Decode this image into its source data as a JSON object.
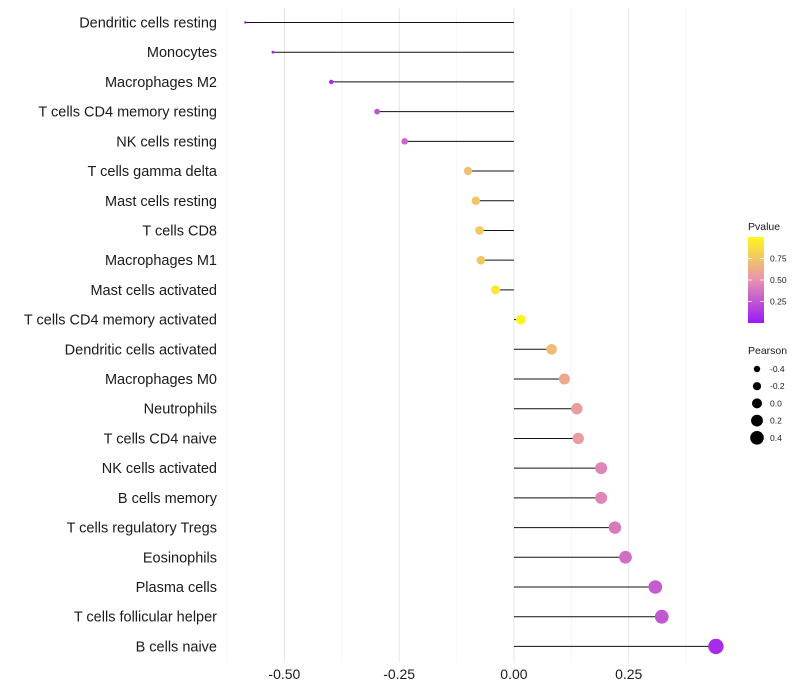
{
  "chart_data": {
    "type": "lollipop",
    "title": "",
    "xlabel": "",
    "ylabel": "",
    "xlim": [
      -0.625,
      0.475
    ],
    "x_ticks": [
      -0.5,
      -0.25,
      0.0,
      0.25
    ],
    "x_tick_labels": [
      "-0.50",
      "-0.25",
      "0.00",
      "0.25"
    ],
    "grid": true,
    "points": [
      {
        "label": "Dendritic cells resting",
        "x": -0.585,
        "pvalue": 0.0
      },
      {
        "label": "Monocytes",
        "x": -0.525,
        "pvalue": 0.03
      },
      {
        "label": "Macrophages M2",
        "x": -0.398,
        "pvalue": 0.07
      },
      {
        "label": "T cells CD4 memory resting",
        "x": -0.298,
        "pvalue": 0.24
      },
      {
        "label": "NK cells resting",
        "x": -0.238,
        "pvalue": 0.31
      },
      {
        "label": "T cells gamma delta",
        "x": -0.1,
        "pvalue": 0.72
      },
      {
        "label": "Mast cells resting",
        "x": -0.083,
        "pvalue": 0.75
      },
      {
        "label": "T cells CD8",
        "x": -0.075,
        "pvalue": 0.77
      },
      {
        "label": "Macrophages M1",
        "x": -0.072,
        "pvalue": 0.76
      },
      {
        "label": "Mast cells activated",
        "x": -0.04,
        "pvalue": 0.92
      },
      {
        "label": "T cells CD4 memory activated",
        "x": 0.015,
        "pvalue": 0.98
      },
      {
        "label": "Dendritic cells activated",
        "x": 0.082,
        "pvalue": 0.7
      },
      {
        "label": "Macrophages M0",
        "x": 0.11,
        "pvalue": 0.62
      },
      {
        "label": "Neutrophils",
        "x": 0.137,
        "pvalue": 0.55
      },
      {
        "label": "T cells CD4 naive",
        "x": 0.14,
        "pvalue": 0.55
      },
      {
        "label": "NK cells activated",
        "x": 0.19,
        "pvalue": 0.45
      },
      {
        "label": "B cells memory",
        "x": 0.19,
        "pvalue": 0.45
      },
      {
        "label": "T cells regulatory  Tregs ",
        "x": 0.22,
        "pvalue": 0.4
      },
      {
        "label": "Eosinophils",
        "x": 0.243,
        "pvalue": 0.35
      },
      {
        "label": "Plasma cells",
        "x": 0.308,
        "pvalue": 0.28
      },
      {
        "label": "T cells follicular helper",
        "x": 0.322,
        "pvalue": 0.26
      },
      {
        "label": "B cells naive",
        "x": 0.44,
        "pvalue": 0.08
      }
    ],
    "legend": {
      "position": "right",
      "color": {
        "title": "Pvalue",
        "range": [
          0.0,
          1.0
        ],
        "breaks": [
          0.25,
          0.5,
          0.75
        ],
        "labels": [
          "0.25",
          "0.50",
          "0.75"
        ],
        "low_color": "#9a19f5",
        "mid_color": "#e792b0",
        "high_color": "#fdf81c"
      },
      "size": {
        "title": "Pearson",
        "breaks": [
          -0.4,
          -0.2,
          0.0,
          0.2,
          0.4
        ],
        "labels": [
          "-0.4",
          "-0.2",
          "0.0",
          "0.2",
          "0.4"
        ]
      }
    }
  }
}
